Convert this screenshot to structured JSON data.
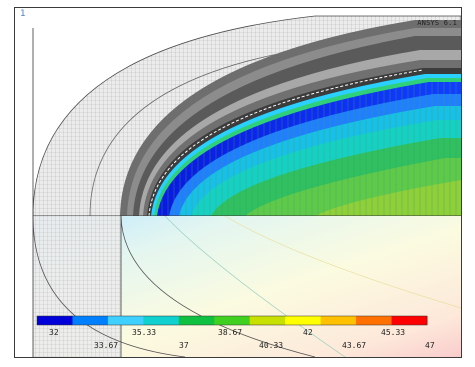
{
  "window": {
    "number": "1",
    "version_label": "ANSYS 6.1"
  },
  "colors": {
    "outer_mesh_fill": "#e9e9e9",
    "mesh_line": "#b0b0b0",
    "casing_dark": "#6e6e6e",
    "casing_light": "#a9a9a9",
    "ring_dark": "#3c3c3c",
    "lower_fill": "#fdfbe0"
  },
  "legend": {
    "colors": [
      "#0000d8",
      "#0080ff",
      "#40d0ff",
      "#10d0d0",
      "#10c040",
      "#40d020",
      "#c8e000",
      "#ffff00",
      "#ffc000",
      "#ff7000",
      "#ff0000"
    ],
    "labels_top": [
      "32",
      "35.33",
      "38.67",
      "42",
      "45.33"
    ],
    "labels_bottom": [
      "33.67",
      "37",
      "40.33",
      "43.67",
      "47"
    ]
  }
}
